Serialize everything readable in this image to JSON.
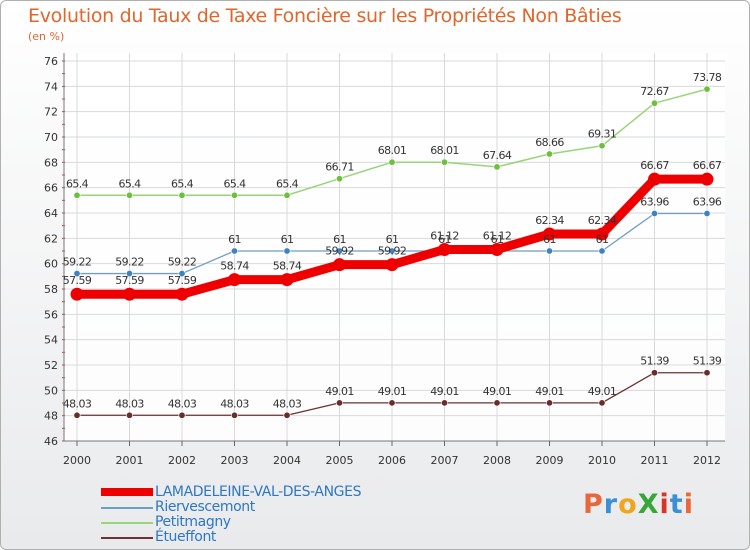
{
  "title": "Evolution du Taux de Taxe Foncière sur les Propriétés Non Bâties",
  "subtitle": "(en %)",
  "logo": {
    "text": "ProXiti",
    "letters": [
      "P",
      "r",
      "o",
      "X",
      "i",
      "t",
      "i"
    ],
    "colors": [
      "#e9683b",
      "#3a8fd6",
      "#f0a51e",
      "#3aa53a",
      "#d8342a",
      "#3a8fd6",
      "#e9683b"
    ]
  },
  "chart_data": {
    "type": "line",
    "x": [
      2000,
      2001,
      2002,
      2003,
      2004,
      2005,
      2006,
      2007,
      2008,
      2009,
      2010,
      2011,
      2012
    ],
    "ylim": [
      46,
      76
    ],
    "yticks": [
      46,
      48,
      50,
      52,
      54,
      56,
      58,
      60,
      62,
      64,
      66,
      68,
      70,
      72,
      74,
      76
    ],
    "grid": true,
    "series": [
      {
        "name": "LAMADELEINE-VAL-DES-ANGES",
        "color": "#ee0000",
        "width": 9,
        "values": [
          57.59,
          57.59,
          57.59,
          58.74,
          58.74,
          59.92,
          59.92,
          61.12,
          61.12,
          62.34,
          62.34,
          66.67,
          66.67
        ],
        "labels": [
          "57.59",
          "57.59",
          "57.59",
          "58.74",
          "58.74",
          "59.92",
          "59.92",
          "61.12",
          "61.12",
          "62.34",
          "62.34",
          "66.67",
          "66.67"
        ]
      },
      {
        "name": "Riervescemont",
        "color": "#6e9ec8",
        "width": 1.3,
        "marker": "#3f82c4",
        "values": [
          59.22,
          59.22,
          59.22,
          61,
          61,
          61,
          61,
          61,
          61,
          61,
          61,
          63.96,
          63.96
        ],
        "labels": [
          "59.22",
          "59.22",
          "59.22",
          "61",
          "61",
          "61",
          "61",
          "61",
          "61",
          "61",
          "61",
          "63.96",
          "63.96"
        ]
      },
      {
        "name": "Petitmagny",
        "color": "#9ad47a",
        "width": 1.5,
        "marker": "#6cc03c",
        "values": [
          65.4,
          65.4,
          65.4,
          65.4,
          65.4,
          66.71,
          68.01,
          68.01,
          67.64,
          68.66,
          69.31,
          72.67,
          73.78
        ],
        "labels": [
          "65.4",
          "65.4",
          "65.4",
          "65.4",
          "65.4",
          "66.71",
          "68.01",
          "68.01",
          "67.64",
          "68.66",
          "69.31",
          "72.67",
          "73.78"
        ]
      },
      {
        "name": "Étueffont",
        "color": "#6a3434",
        "width": 1.3,
        "marker": "#6a2d2d",
        "values": [
          48.03,
          48.03,
          48.03,
          48.03,
          48.03,
          49.01,
          49.01,
          49.01,
          49.01,
          49.01,
          49.01,
          51.39,
          51.39
        ],
        "labels": [
          "48.03",
          "48.03",
          "48.03",
          "48.03",
          "48.03",
          "49.01",
          "49.01",
          "49.01",
          "49.01",
          "49.01",
          "49.01",
          "51.39",
          "51.39"
        ]
      }
    ]
  }
}
